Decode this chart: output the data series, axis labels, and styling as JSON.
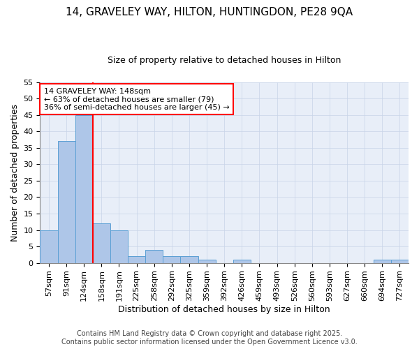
{
  "title_line1": "14, GRAVELEY WAY, HILTON, HUNTINGDON, PE28 9QA",
  "title_line2": "Size of property relative to detached houses in Hilton",
  "xlabel": "Distribution of detached houses by size in Hilton",
  "ylabel": "Number of detached properties",
  "bin_labels": [
    "57sqm",
    "91sqm",
    "124sqm",
    "158sqm",
    "191sqm",
    "225sqm",
    "258sqm",
    "292sqm",
    "325sqm",
    "359sqm",
    "392sqm",
    "426sqm",
    "459sqm",
    "493sqm",
    "526sqm",
    "560sqm",
    "593sqm",
    "627sqm",
    "660sqm",
    "694sqm",
    "727sqm"
  ],
  "bar_values": [
    10,
    37,
    45,
    12,
    10,
    2,
    4,
    2,
    2,
    1,
    0,
    1,
    0,
    0,
    0,
    0,
    0,
    0,
    0,
    1,
    1
  ],
  "bar_color": "#aec6e8",
  "bar_edge_color": "#5a9fd4",
  "vline_color": "red",
  "annotation_text": "14 GRAVELEY WAY: 148sqm\n← 63% of detached houses are smaller (79)\n36% of semi-detached houses are larger (45) →",
  "annotation_box_color": "white",
  "annotation_box_edge": "red",
  "ylim": [
    0,
    55
  ],
  "yticks": [
    0,
    5,
    10,
    15,
    20,
    25,
    30,
    35,
    40,
    45,
    50,
    55
  ],
  "grid_color": "#c8d4e8",
  "background_color": "#ffffff",
  "footer_line1": "Contains HM Land Registry data © Crown copyright and database right 2025.",
  "footer_line2": "Contains public sector information licensed under the Open Government Licence v3.0.",
  "title_fontsize": 11,
  "subtitle_fontsize": 9,
  "label_fontsize": 9,
  "tick_fontsize": 8,
  "annotation_fontsize": 8,
  "footer_fontsize": 7
}
